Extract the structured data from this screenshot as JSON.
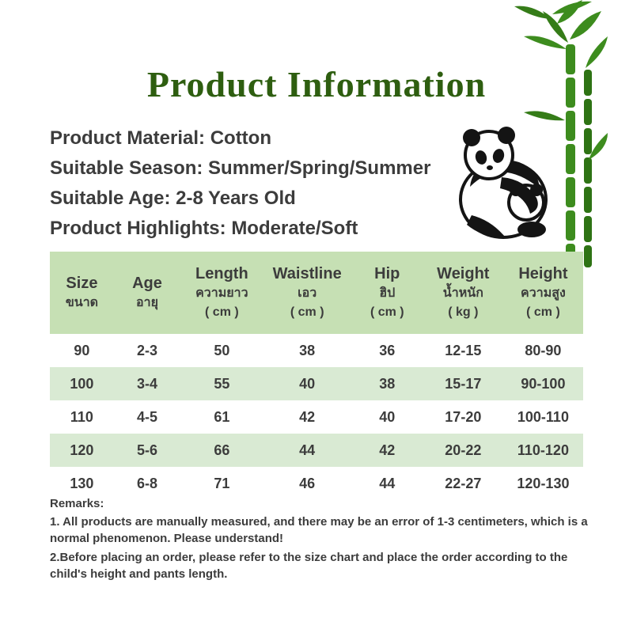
{
  "page": {
    "title": "Product Information"
  },
  "info": {
    "lines": [
      "Product Material: Cotton",
      "Suitable Season: Summer/Spring/Summer",
      "Suitable Age: 2-8 Years Old",
      "Product Highlights: Moderate/Soft"
    ]
  },
  "size_table": {
    "columns": [
      {
        "en": "Size",
        "th": "ขนาด",
        "unit": ""
      },
      {
        "en": "Age",
        "th": "อายุ",
        "unit": ""
      },
      {
        "en": "Length",
        "th": "ความยาว",
        "unit": "( cm )"
      },
      {
        "en": "Waistline",
        "th": "เอว",
        "unit": "( cm )"
      },
      {
        "en": "Hip",
        "th": "ฮิป",
        "unit": "( cm )"
      },
      {
        "en": "Weight",
        "th": "น้ำหนัก",
        "unit": "( kg )"
      },
      {
        "en": "Height",
        "th": "ความสูง",
        "unit": "( cm )"
      }
    ],
    "rows": [
      [
        "90",
        "2-3",
        "50",
        "38",
        "36",
        "12-15",
        "80-90"
      ],
      [
        "100",
        "3-4",
        "55",
        "40",
        "38",
        "15-17",
        "90-100"
      ],
      [
        "110",
        "4-5",
        "61",
        "42",
        "40",
        "17-20",
        "100-110"
      ],
      [
        "120",
        "5-6",
        "66",
        "44",
        "42",
        "20-22",
        "110-120"
      ],
      [
        "130",
        "6-8",
        "71",
        "46",
        "44",
        "22-27",
        "120-130"
      ]
    ]
  },
  "remarks": {
    "heading": "Remarks:",
    "items": [
      "1. All products are manually measured, and there may be an error of 1-3 centimeters, which is a normal   phenomenon. Please understand!",
      "2.Before placing an order, please refer to the size chart and place the order according to the child's height and pants length."
    ]
  },
  "illustration": "panda-with-bamboo",
  "colors": {
    "title_green": "#2e5e10",
    "text_dark": "#3c3c3c",
    "table_header_green": "#c6e0b4",
    "table_stripe_green": "#d9ead3",
    "bamboo_green": "#3d8c1e",
    "panda_black": "#141414"
  }
}
